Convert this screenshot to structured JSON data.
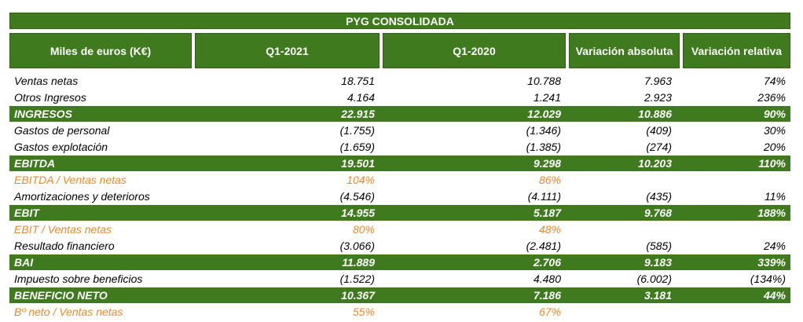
{
  "title": "PYG CONSOLIDADA",
  "headers": {
    "label": "Miles de euros (K€)",
    "q1_2021": "Q1-2021",
    "q1_2020": "Q1-2020",
    "abs": "Variación absoluta",
    "rel": "Variación relativa"
  },
  "colors": {
    "green": "#3f7a1e",
    "orange": "#e8892b"
  },
  "rows": [
    {
      "label": "Ventas netas",
      "q21": "18.751",
      "q20": "10.788",
      "abs": "7.963",
      "rel": "74%"
    },
    {
      "label": "Otros Ingresos",
      "q21": "4.164",
      "q20": "1.241",
      "abs": "2.923",
      "rel": "236%"
    },
    {
      "label": "INGRESOS",
      "q21": "22.915",
      "q20": "12.029",
      "abs": "10.886",
      "rel": "90%"
    },
    {
      "label": "Gastos de personal",
      "q21": "(1.755)",
      "q20": "(1.346)",
      "abs": "(409)",
      "rel": "30%"
    },
    {
      "label": "Gastos explotación",
      "q21": "(1.659)",
      "q20": "(1.385)",
      "abs": "(274)",
      "rel": "20%"
    },
    {
      "label": "EBITDA",
      "q21": "19.501",
      "q20": "9.298",
      "abs": "10.203",
      "rel": "110%"
    },
    {
      "label": "EBITDA / Ventas netas",
      "q21": "104%",
      "q20": "86%",
      "abs": "",
      "rel": ""
    },
    {
      "label": "Amortizaciones y deterioros",
      "q21": "(4.546)",
      "q20": "(4.111)",
      "abs": "(435)",
      "rel": "11%"
    },
    {
      "label": "EBIT",
      "q21": "14.955",
      "q20": "5.187",
      "abs": "9.768",
      "rel": "188%"
    },
    {
      "label": "EBIT / Ventas netas",
      "q21": "80%",
      "q20": "48%",
      "abs": "",
      "rel": ""
    },
    {
      "label": "Resultado financiero",
      "q21": "(3.066)",
      "q20": "(2.481)",
      "abs": "(585)",
      "rel": "24%"
    },
    {
      "label": "BAI",
      "q21": "11.889",
      "q20": "2.706",
      "abs": "9.183",
      "rel": "339%"
    },
    {
      "label": "Impuesto sobre beneficios",
      "q21": "(1.522)",
      "q20": "4.480",
      "abs": "(6.002)",
      "rel": "(134%)"
    },
    {
      "label": "BENEFICIO NETO",
      "q21": "10.367",
      "q20": "7.186",
      "abs": "3.181",
      "rel": "44%"
    },
    {
      "label": "Bº neto / Ventas netas",
      "q21": "55%",
      "q20": "67%",
      "abs": "",
      "rel": ""
    }
  ]
}
